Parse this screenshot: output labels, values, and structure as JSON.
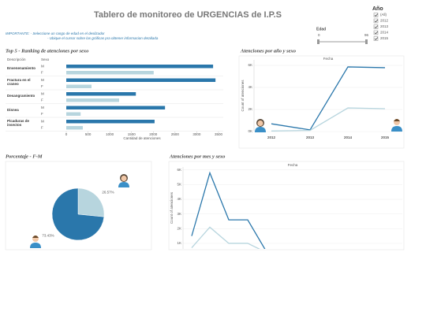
{
  "header": {
    "title": "Tablero de monitoreo de URGENCIAS de I.P.S",
    "notes": [
      "IMPORTANTE: - Seleccione un rango de edad en el deslizador",
      "- Ubique el cursor sobre las gráficas pra obtener informacion detallada"
    ]
  },
  "age_filter": {
    "label": "Edad",
    "min": "0",
    "max": "96"
  },
  "year_filter": {
    "label": "Año",
    "options": [
      "(All)",
      "2012",
      "2013",
      "2014",
      "2015"
    ]
  },
  "chart_data": [
    {
      "type": "bar",
      "orientation": "horizontal",
      "title": "Top 5 - Ranking de atenciones por sexo",
      "column_headers": [
        "Descripción",
        "Sexo"
      ],
      "categories": [
        "Envenenamiento",
        "Fractura en el craneo",
        "Desangramiento",
        "Disnea",
        "Picaduras de insectos"
      ],
      "series": [
        {
          "name": "M",
          "color": "#2a77ab",
          "values": [
            3375,
            3430,
            1600,
            2270,
            2030
          ]
        },
        {
          "name": "F",
          "color": "#b7d5de",
          "values": [
            2010,
            580,
            1215,
            330,
            380
          ]
        }
      ],
      "xlim": [
        0,
        3500
      ],
      "xticks": [
        0,
        500,
        1000,
        1500,
        2000,
        2500,
        3000,
        3500
      ],
      "xlabel": "Cantidad de atenciones"
    },
    {
      "type": "line",
      "title": "Atenciones por año y sexo",
      "header": "Fecha",
      "categories": [
        "2012",
        "2013",
        "2014",
        "2015"
      ],
      "series": [
        {
          "color": "#2a77ab",
          "values": [
            700,
            150,
            5860,
            5790
          ]
        },
        {
          "color": "#b7d5de",
          "values": [
            50,
            100,
            2140,
            2070
          ]
        }
      ],
      "ylim": [
        0,
        6500
      ],
      "yticks": [
        {
          "value": 0,
          "label": "0K"
        },
        {
          "value": 2000,
          "label": "2K"
        },
        {
          "value": 4000,
          "label": "4K"
        },
        {
          "value": 6000,
          "label": "6K"
        }
      ],
      "ylabel": "Count of atenciones"
    },
    {
      "type": "pie",
      "title": "Porcentaje - F-M",
      "values": [
        26.57,
        73.43
      ],
      "value_labels": [
        "26.57%",
        "73.43%"
      ],
      "colors": [
        "#b7d5de",
        "#2a77ab"
      ]
    },
    {
      "type": "line",
      "title": "Atenciones por mes y sexo",
      "header": "Fecha",
      "categories": [
        null,
        null,
        null,
        null,
        null
      ],
      "series": [
        {
          "color": "#2a77ab",
          "values": [
            1500,
            5800,
            2600,
            2600,
            500
          ]
        },
        {
          "color": "#b7d5de",
          "values": [
            700,
            2100,
            1000,
            1000,
            400
          ]
        }
      ],
      "ylim": [
        0,
        6200
      ],
      "yticks": [
        {
          "value": 1000,
          "label": "1K"
        },
        {
          "value": 2000,
          "label": "2K"
        },
        {
          "value": 3000,
          "label": "3K"
        },
        {
          "value": 4000,
          "label": "4K"
        },
        {
          "value": 5000,
          "label": "5K"
        },
        {
          "value": 6000,
          "label": "6K"
        }
      ],
      "ylabel": "Count of atenciones"
    }
  ]
}
